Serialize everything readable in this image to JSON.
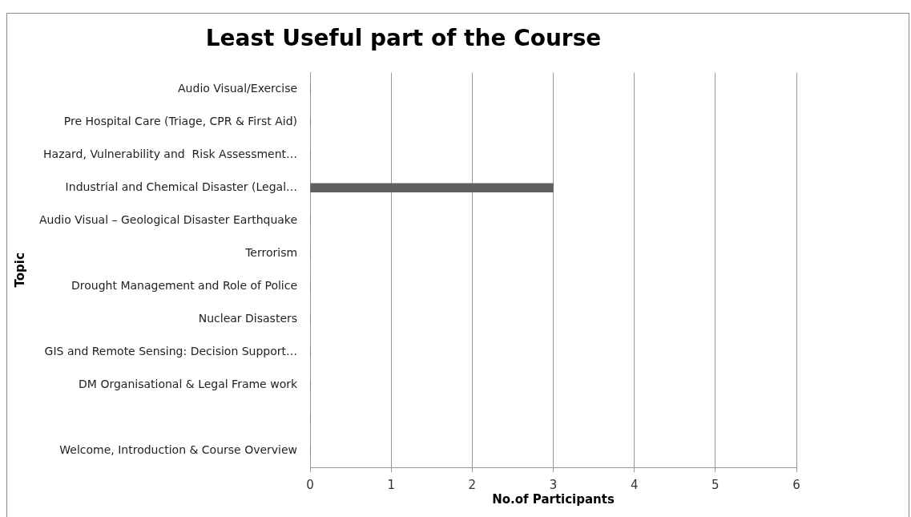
{
  "chart_data": {
    "type": "bar",
    "orientation": "horizontal",
    "title": "Least Useful part of the Course",
    "xlabel": "No.of Participants",
    "ylabel": "Topic",
    "categories": [
      "Audio Visual/Exercise",
      "Pre Hospital Care (Triage, CPR & First Aid)",
      "Hazard, Vulnerability and  Risk Assessment…",
      "Industrial and Chemical Disaster (Legal…",
      "Audio Visual – Geological Disaster Earthquake",
      "Terrorism",
      "Drought Management and Role of Police",
      "Nuclear Disasters",
      "GIS and Remote Sensing: Decision Support…",
      "DM Organisational & Legal Frame work",
      null,
      "Welcome, Introduction & Course Overview"
    ],
    "values": [
      0,
      0,
      0,
      3,
      0,
      0,
      0,
      0,
      0,
      0,
      0,
      0
    ],
    "color": "#606060",
    "xlim": [
      0,
      6
    ],
    "xticks": [
      0,
      1,
      2,
      3,
      4,
      5,
      6
    ],
    "grid": "x",
    "legend": false
  }
}
